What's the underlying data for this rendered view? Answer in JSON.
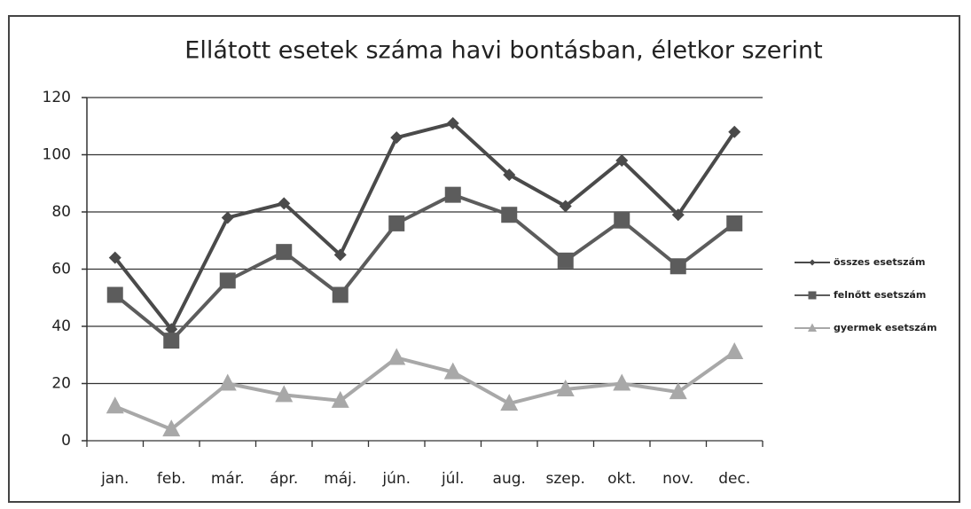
{
  "chart_data": {
    "type": "line",
    "title": "Ellátott esetek száma havi bontásban, életkor szerint",
    "categories": [
      "jan.",
      "feb.",
      "már.",
      "ápr.",
      "máj.",
      "jún.",
      "júl.",
      "aug.",
      "szep.",
      "okt.",
      "nov.",
      "dec."
    ],
    "series": [
      {
        "name": "összes esetszám",
        "color": "#4a4a4a",
        "marker": "diamond",
        "values": [
          64,
          39,
          78,
          83,
          65,
          106,
          111,
          93,
          82,
          98,
          79,
          108
        ]
      },
      {
        "name": "felnőtt esetszám",
        "color": "#5c5c5c",
        "marker": "square",
        "values": [
          51,
          35,
          56,
          66,
          51,
          76,
          86,
          79,
          63,
          77,
          61,
          76
        ]
      },
      {
        "name": "gyermek esetszám",
        "color": "#a8a8a8",
        "marker": "triangle",
        "values": [
          12,
          4,
          20,
          16,
          14,
          29,
          24,
          13,
          18,
          20,
          17,
          31
        ]
      }
    ],
    "ylim": [
      0,
      120
    ],
    "yticks": [
      0,
      20,
      40,
      60,
      80,
      100,
      120
    ],
    "grid": true,
    "legend": "right"
  }
}
